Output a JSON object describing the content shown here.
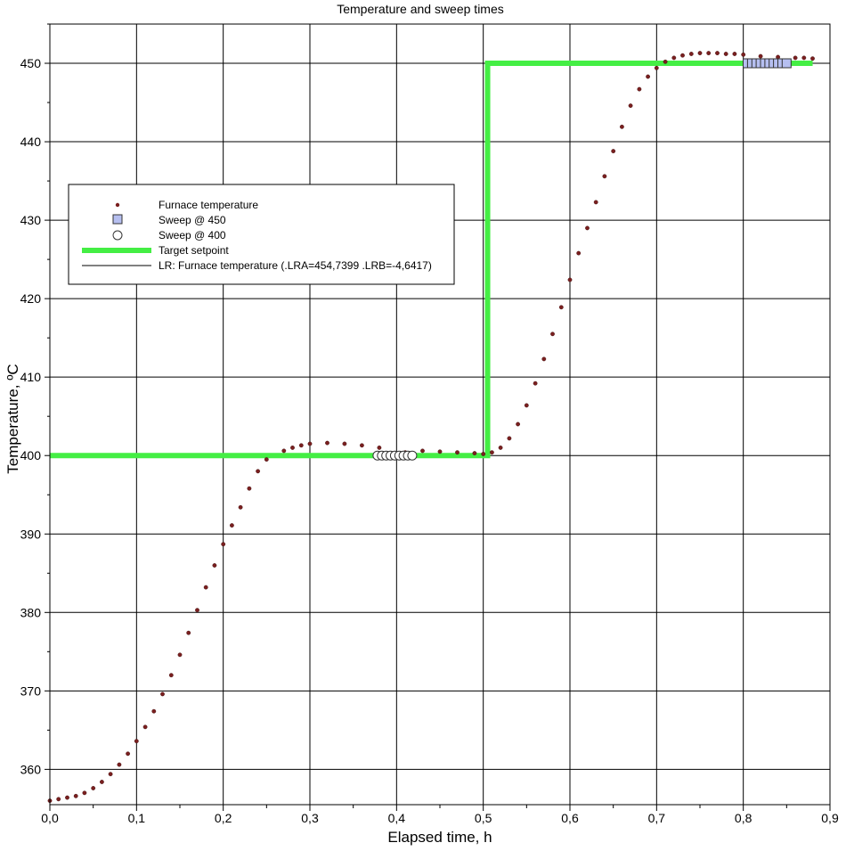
{
  "chart_data": {
    "type": "scatter",
    "title": "Temperature and sweep times",
    "xlabel": "Elapsed time, h",
    "ylabel": "Temperature, ºC",
    "xlim": [
      0.0,
      0.9
    ],
    "ylim": [
      355.5,
      455
    ],
    "grid": true,
    "x_ticks": [
      "0,0",
      "0,1",
      "0,2",
      "0,3",
      "0,4",
      "0,5",
      "0,6",
      "0,7",
      "0,8",
      "0,9"
    ],
    "y_ticks": [
      "360",
      "370",
      "380",
      "390",
      "400",
      "410",
      "420",
      "430",
      "440",
      "450"
    ],
    "legend_position": "upper-left",
    "series": [
      {
        "name": "Furnace temperature",
        "kind": "markers",
        "color": "#7a1f1f",
        "points": [
          [
            0.0,
            356.0
          ],
          [
            0.01,
            356.2
          ],
          [
            0.02,
            356.4
          ],
          [
            0.03,
            356.6
          ],
          [
            0.04,
            357.0
          ],
          [
            0.05,
            357.6
          ],
          [
            0.06,
            358.4
          ],
          [
            0.07,
            359.4
          ],
          [
            0.08,
            360.6
          ],
          [
            0.09,
            362.0
          ],
          [
            0.1,
            363.6
          ],
          [
            0.11,
            365.4
          ],
          [
            0.12,
            367.4
          ],
          [
            0.13,
            369.6
          ],
          [
            0.14,
            372.0
          ],
          [
            0.15,
            374.6
          ],
          [
            0.16,
            377.4
          ],
          [
            0.17,
            380.3
          ],
          [
            0.18,
            383.2
          ],
          [
            0.19,
            386.0
          ],
          [
            0.2,
            388.7
          ],
          [
            0.21,
            391.1
          ],
          [
            0.22,
            393.4
          ],
          [
            0.23,
            395.8
          ],
          [
            0.24,
            398.0
          ],
          [
            0.25,
            399.5
          ],
          [
            0.27,
            400.6
          ],
          [
            0.28,
            401.0
          ],
          [
            0.29,
            401.3
          ],
          [
            0.3,
            401.5
          ],
          [
            0.32,
            401.6
          ],
          [
            0.34,
            401.5
          ],
          [
            0.36,
            401.3
          ],
          [
            0.38,
            401.0
          ],
          [
            0.41,
            400.4
          ],
          [
            0.43,
            400.6
          ],
          [
            0.45,
            400.5
          ],
          [
            0.47,
            400.4
          ],
          [
            0.49,
            400.3
          ],
          [
            0.5,
            400.2
          ],
          [
            0.51,
            400.4
          ],
          [
            0.52,
            401.0
          ],
          [
            0.53,
            402.2
          ],
          [
            0.54,
            404.0
          ],
          [
            0.55,
            406.4
          ],
          [
            0.56,
            409.2
          ],
          [
            0.57,
            412.3
          ],
          [
            0.58,
            415.5
          ],
          [
            0.59,
            418.9
          ],
          [
            0.6,
            422.4
          ],
          [
            0.61,
            425.8
          ],
          [
            0.62,
            429.0
          ],
          [
            0.63,
            432.3
          ],
          [
            0.64,
            435.6
          ],
          [
            0.65,
            438.8
          ],
          [
            0.66,
            441.9
          ],
          [
            0.67,
            444.6
          ],
          [
            0.68,
            446.7
          ],
          [
            0.69,
            448.3
          ],
          [
            0.7,
            449.4
          ],
          [
            0.71,
            450.2
          ],
          [
            0.72,
            450.7
          ],
          [
            0.73,
            451.0
          ],
          [
            0.74,
            451.2
          ],
          [
            0.75,
            451.3
          ],
          [
            0.76,
            451.3
          ],
          [
            0.77,
            451.3
          ],
          [
            0.78,
            451.2
          ],
          [
            0.79,
            451.2
          ],
          [
            0.8,
            451.1
          ],
          [
            0.82,
            450.9
          ],
          [
            0.84,
            450.8
          ],
          [
            0.86,
            450.7
          ],
          [
            0.87,
            450.7
          ],
          [
            0.88,
            450.6
          ]
        ]
      },
      {
        "name": "Sweep @ 450",
        "kind": "squares",
        "color": "#b6bff0",
        "x": [
          0.805,
          0.81,
          0.815,
          0.82,
          0.825,
          0.83,
          0.835,
          0.84,
          0.845,
          0.85
        ],
        "y": [
          450,
          450,
          450,
          450,
          450,
          450,
          450,
          450,
          450,
          450
        ]
      },
      {
        "name": "Sweep @ 400",
        "kind": "circles",
        "color": "#ffffff",
        "x": [
          0.378,
          0.383,
          0.388,
          0.393,
          0.398,
          0.403,
          0.408,
          0.413,
          0.418
        ],
        "y": [
          400,
          400,
          400,
          400,
          400,
          400,
          400,
          400,
          400
        ]
      },
      {
        "name": "Target setpoint",
        "kind": "step-line",
        "color": "#44ee44",
        "points": [
          [
            0.0,
            400
          ],
          [
            0.505,
            400
          ],
          [
            0.505,
            450
          ],
          [
            0.88,
            450
          ]
        ]
      },
      {
        "name": "LR: Furnace temperature (.LRA=454,7399 .LRB=-4,6417)",
        "kind": "line",
        "color": "#000000"
      }
    ]
  }
}
